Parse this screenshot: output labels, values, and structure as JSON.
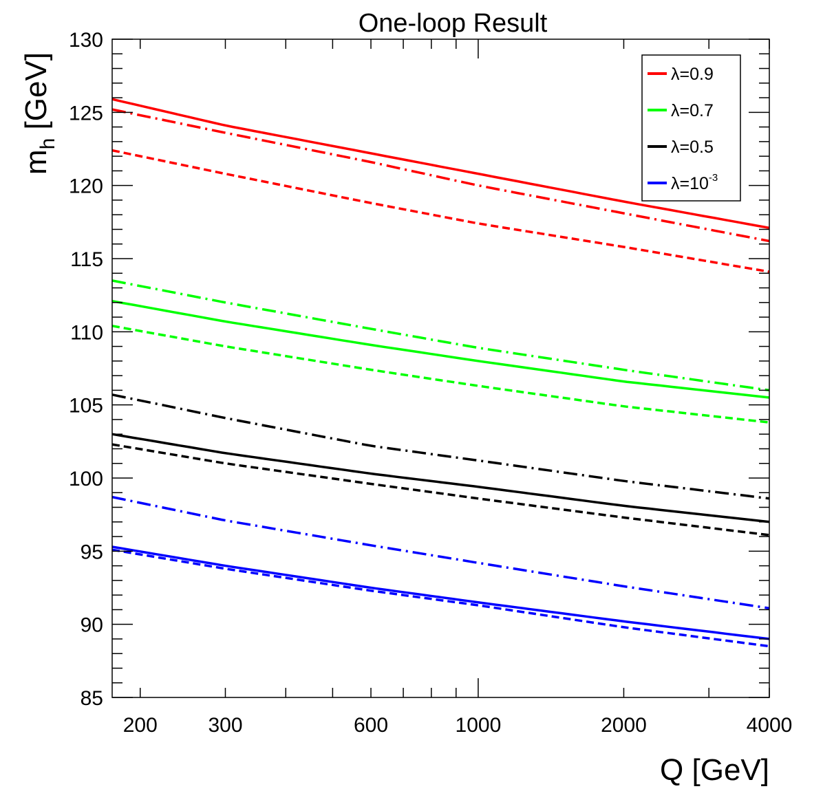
{
  "chart_data": {
    "type": "line",
    "title": "One-loop Result",
    "xlabel": "Q [GeV]",
    "ylabel": "m_h [GeV]",
    "ylabel_main": "m",
    "ylabel_sub": "h",
    "ylabel_rest": " [GeV]",
    "xscale": "log",
    "xlim": [
      175,
      4000
    ],
    "ylim": [
      85,
      130
    ],
    "grid": false,
    "legend_position": "top-right",
    "x_ticks": [
      200,
      300,
      600,
      1000,
      2000,
      4000
    ],
    "x_tick_labels": [
      "200",
      "300",
      "600",
      "1000",
      "2000",
      "4000"
    ],
    "y_ticks": [
      85,
      90,
      95,
      100,
      105,
      110,
      115,
      120,
      125,
      130
    ],
    "y_tick_labels": [
      "85",
      "90",
      "95",
      "100",
      "105",
      "110",
      "115",
      "120",
      "125",
      "130"
    ],
    "legend": [
      {
        "label": "λ=0.9",
        "color": "#ff0000"
      },
      {
        "label": "λ=0.7",
        "color": "#00ff00"
      },
      {
        "label": "λ=0.5",
        "color": "#000000"
      },
      {
        "label": "λ=10",
        "sup": "-3",
        "color": "#0000ff"
      }
    ],
    "series": [
      {
        "name": "λ=0.9 solid",
        "color": "#ff0000",
        "style": "solid",
        "x": [
          175,
          300,
          600,
          1000,
          2000,
          4000
        ],
        "y": [
          125.9,
          124.1,
          122.2,
          120.8,
          118.9,
          117.1
        ]
      },
      {
        "name": "λ=0.9 dash-dot",
        "color": "#ff0000",
        "style": "dashdot",
        "x": [
          175,
          300,
          600,
          1000,
          2000,
          4000
        ],
        "y": [
          125.2,
          123.6,
          121.6,
          120.0,
          118.1,
          116.2
        ]
      },
      {
        "name": "λ=0.9 dashed",
        "color": "#ff0000",
        "style": "dashed",
        "x": [
          175,
          300,
          600,
          1000,
          2000,
          4000
        ],
        "y": [
          122.4,
          120.8,
          118.8,
          117.4,
          115.8,
          114.1
        ]
      },
      {
        "name": "λ=0.7 solid",
        "color": "#00ff00",
        "style": "solid",
        "x": [
          175,
          300,
          600,
          1000,
          2000,
          4000
        ],
        "y": [
          112.1,
          110.7,
          109.1,
          108.0,
          106.6,
          105.5
        ]
      },
      {
        "name": "λ=0.7 dash-dot",
        "color": "#00ff00",
        "style": "dashdot",
        "x": [
          175,
          300,
          600,
          1000,
          2000,
          4000
        ],
        "y": [
          113.5,
          112.0,
          110.2,
          108.9,
          107.4,
          106.0
        ]
      },
      {
        "name": "λ=0.7 dashed",
        "color": "#00ff00",
        "style": "dashed",
        "x": [
          175,
          300,
          600,
          1000,
          2000,
          4000
        ],
        "y": [
          110.4,
          109.0,
          107.4,
          106.3,
          104.9,
          103.8
        ]
      },
      {
        "name": "λ=0.5 solid",
        "color": "#000000",
        "style": "solid",
        "x": [
          175,
          300,
          600,
          1000,
          2000,
          4000
        ],
        "y": [
          103.0,
          101.7,
          100.3,
          99.4,
          98.1,
          97.0
        ]
      },
      {
        "name": "λ=0.5 dash-dot",
        "color": "#000000",
        "style": "dashdot",
        "x": [
          175,
          300,
          600,
          1000,
          2000,
          4000
        ],
        "y": [
          105.7,
          104.1,
          102.2,
          101.2,
          99.8,
          98.6
        ]
      },
      {
        "name": "λ=0.5 dashed",
        "color": "#000000",
        "style": "dashed",
        "x": [
          175,
          300,
          600,
          1000,
          2000,
          4000
        ],
        "y": [
          102.3,
          101.0,
          99.6,
          98.6,
          97.3,
          96.1
        ]
      },
      {
        "name": "λ=10^-3 solid",
        "color": "#0000ff",
        "style": "solid",
        "x": [
          175,
          300,
          600,
          1000,
          2000,
          4000
        ],
        "y": [
          95.3,
          94.0,
          92.5,
          91.5,
          90.2,
          89.0
        ]
      },
      {
        "name": "λ=10^-3 dash-dot",
        "color": "#0000ff",
        "style": "dashdot",
        "x": [
          175,
          300,
          600,
          1000,
          2000,
          4000
        ],
        "y": [
          98.7,
          97.1,
          95.4,
          94.2,
          92.6,
          91.1
        ]
      },
      {
        "name": "λ=10^-3 dashed",
        "color": "#0000ff",
        "style": "dashed",
        "x": [
          175,
          300,
          600,
          1000,
          2000,
          4000
        ],
        "y": [
          95.1,
          93.8,
          92.3,
          91.3,
          89.8,
          88.5
        ]
      }
    ]
  }
}
